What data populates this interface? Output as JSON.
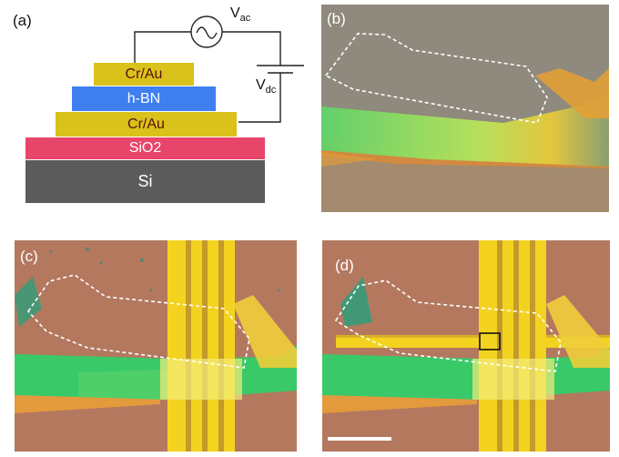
{
  "panel_a": {
    "label": "(a)",
    "layers": {
      "top_contact": "Cr/Au",
      "dielectric": "h-BN",
      "bottom_contact": "Cr/Au",
      "oxide": "SiO2",
      "substrate": "Si"
    },
    "vac": {
      "main": "V",
      "sub": "ac"
    },
    "vdc": {
      "main": "V",
      "sub": "dc"
    }
  },
  "panel_b": {
    "label": "(b)"
  },
  "panel_c": {
    "label": "(c)"
  },
  "panel_d": {
    "label": "(d)"
  },
  "colors": {
    "gold": "#d9c21b",
    "hbn_blue": "#3f7ff0",
    "sio2_pink": "#e8456a",
    "si_gray": "#5b5b5b",
    "photo_gray": "#8f8a7d",
    "photo_brown": "#b4785f",
    "electrode_yellow": "#f3d31f",
    "flake_green": "#39c969",
    "outline": "#ffffff"
  }
}
